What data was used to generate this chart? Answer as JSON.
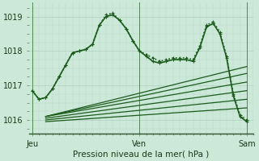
{
  "bg_color": "#cce8d8",
  "grid_color_major": "#a8c8b8",
  "grid_color_minor": "#b8d8c8",
  "line_color": "#1a5c1a",
  "xlabel": "Pression niveau de la mer( hPa )",
  "ylim": [
    1015.6,
    1019.4
  ],
  "yticks": [
    1016,
    1017,
    1018,
    1019
  ],
  "xtick_labels": [
    "Jeu",
    "Ven",
    "Sam"
  ],
  "series": [
    {
      "x": [
        0,
        1,
        2,
        3,
        4,
        5,
        6,
        7,
        8,
        9,
        10,
        11,
        12,
        13,
        14,
        15,
        16,
        17,
        18,
        19,
        20,
        21,
        22,
        23,
        24,
        25,
        26,
        27,
        28,
        29,
        30,
        31,
        32
      ],
      "y": [
        1016.85,
        1016.6,
        1016.65,
        1016.9,
        1017.25,
        1017.6,
        1017.95,
        1018.0,
        1018.05,
        1018.2,
        1018.75,
        1019.0,
        1019.05,
        1018.9,
        1018.65,
        1018.3,
        1018.0,
        1017.85,
        1017.7,
        1017.65,
        1017.7,
        1017.75,
        1017.75,
        1017.75,
        1017.7,
        1018.1,
        1018.7,
        1018.8,
        1018.5,
        1017.8,
        1016.7,
        1016.1,
        1015.95
      ],
      "marker": "+",
      "lw": 1.2,
      "ls": "-"
    },
    {
      "x": [
        0,
        1,
        2,
        3,
        4,
        5,
        6,
        7,
        8,
        9,
        10,
        11,
        12,
        13,
        14,
        15,
        16,
        17,
        18,
        19,
        20,
        21,
        22,
        23,
        24,
        25,
        26,
        27,
        28,
        29,
        30,
        31,
        32
      ],
      "y": [
        1016.85,
        1016.6,
        1016.65,
        1016.9,
        1017.25,
        1017.6,
        1017.95,
        1018.0,
        1018.05,
        1018.2,
        1018.75,
        1019.05,
        1019.1,
        1018.9,
        1018.65,
        1018.3,
        1018.0,
        1017.9,
        1017.8,
        1017.7,
        1017.75,
        1017.8,
        1017.8,
        1017.8,
        1017.75,
        1018.15,
        1018.75,
        1018.85,
        1018.55,
        1017.85,
        1016.75,
        1016.15,
        1016.0
      ],
      "marker": "+",
      "lw": 1.2,
      "ls": ":"
    },
    {
      "x": [
        2,
        32
      ],
      "y": [
        1016.1,
        1017.55
      ],
      "marker": null,
      "lw": 0.9,
      "ls": "-"
    },
    {
      "x": [
        2,
        32
      ],
      "y": [
        1016.1,
        1017.35
      ],
      "marker": null,
      "lw": 0.9,
      "ls": "-"
    },
    {
      "x": [
        2,
        32
      ],
      "y": [
        1016.1,
        1017.1
      ],
      "marker": null,
      "lw": 0.9,
      "ls": "-"
    },
    {
      "x": [
        2,
        32
      ],
      "y": [
        1016.05,
        1016.85
      ],
      "marker": null,
      "lw": 0.9,
      "ls": "-"
    },
    {
      "x": [
        2,
        32
      ],
      "y": [
        1016.0,
        1016.6
      ],
      "marker": null,
      "lw": 0.9,
      "ls": "-"
    },
    {
      "x": [
        2,
        32
      ],
      "y": [
        1015.95,
        1016.35
      ],
      "marker": null,
      "lw": 0.9,
      "ls": "-"
    }
  ]
}
